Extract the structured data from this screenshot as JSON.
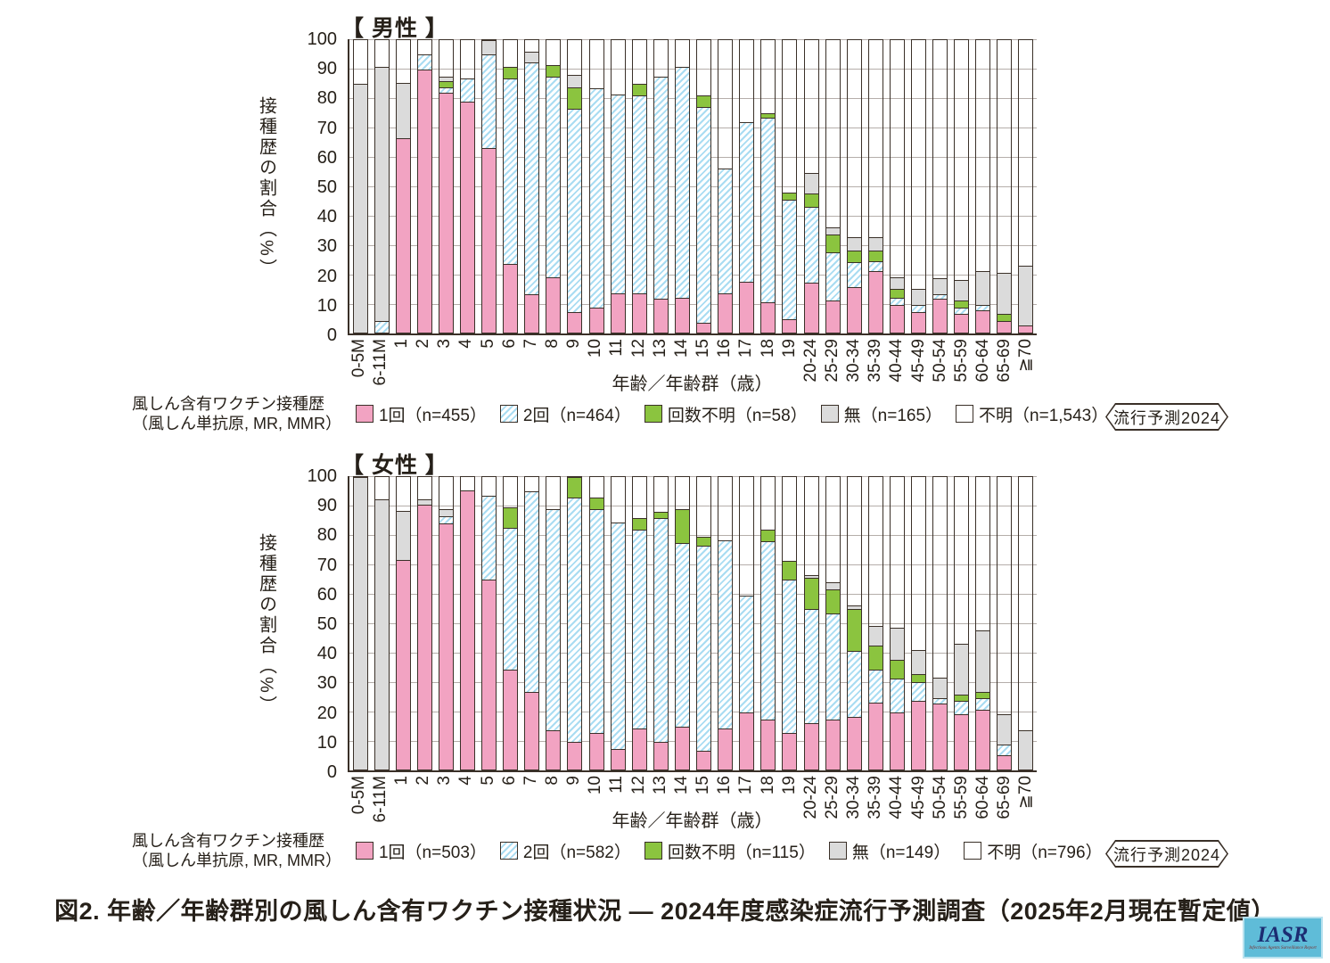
{
  "caption": "図2. 年齢／年齢群別の風しん含有ワクチン接種状況 ― 2024年度感染症流行予測調査（2025年2月現在暫定値）",
  "badge_label": "流行予測2024",
  "logo": {
    "title": "IASR",
    "subtitle": "Infectious Agents Surveillance Report"
  },
  "colors": {
    "dose1_pink": "#f2a3c2",
    "dose2_stripe_blue": "#a9dcf2",
    "unknown_doses_green": "#8bc43f",
    "none_gray": "#dbdbdb",
    "outline": "#3a3028",
    "grid": "#b5aeaa"
  },
  "chart_data": [
    {
      "type": "bar",
      "stacked": true,
      "panel_title": "【 男性 】",
      "ylabel": "接種歴の割合（%）",
      "xlabel": "年齢／年齢群（歳）",
      "ylim": [
        0,
        100
      ],
      "yticks": [
        0,
        10,
        20,
        30,
        40,
        50,
        60,
        70,
        80,
        90,
        100
      ],
      "grid": true,
      "legend_note1": "風しん含有ワクチン接種歴",
      "legend_note2": "（風しん単抗原, MR, MMR）",
      "categories": [
        "0-5M",
        "6-11M",
        "1",
        "2",
        "3",
        "4",
        "5",
        "6",
        "7",
        "8",
        "9",
        "10",
        "11",
        "12",
        "13",
        "14",
        "15",
        "16",
        "17",
        "18",
        "19",
        "20-24",
        "25-29",
        "30-34",
        "35-39",
        "40-44",
        "45-49",
        "50-54",
        "55-59",
        "60-64",
        "65-69",
        "≧70"
      ],
      "series": [
        {
          "key": "dose1",
          "name": "1回（n=455）",
          "values": [
            0,
            0,
            66.5,
            90,
            82,
            79,
            63,
            23.5,
            13,
            19,
            7,
            8.5,
            13.5,
            13.5,
            11.5,
            12,
            3.5,
            13.5,
            17.5,
            10.5,
            4.5,
            17,
            11,
            15.5,
            21,
            9.5,
            7,
            11.5,
            6.5,
            7.5,
            4,
            2.5
          ]
        },
        {
          "key": "dose2",
          "name": "2回（n=464）",
          "values": [
            0,
            4,
            0,
            5,
            2,
            8,
            32,
            63.5,
            79.5,
            68.5,
            69.5,
            75,
            68,
            67.5,
            76,
            79,
            73.5,
            42.5,
            54.5,
            63,
            41,
            26,
            16.5,
            8.5,
            3.5,
            2.5,
            2.5,
            1.5,
            2,
            2,
            0,
            0
          ]
        },
        {
          "key": "unknown",
          "name": "回数不明（n=58）",
          "values": [
            0,
            0,
            0,
            0,
            2,
            0,
            0,
            4,
            0,
            4,
            7.5,
            0,
            0,
            4,
            0,
            0,
            4,
            0,
            0,
            1.5,
            2.5,
            4.5,
            6,
            4,
            3.5,
            3,
            0,
            0,
            2.5,
            0,
            2.5,
            0
          ]
        },
        {
          "key": "none",
          "name": "無（n=165）",
          "values": [
            85,
            87,
            19,
            0,
            1.5,
            0,
            5,
            0,
            3.5,
            0,
            4,
            0,
            0,
            0,
            0,
            0,
            0,
            0,
            0,
            0,
            0,
            7,
            2.5,
            4.5,
            4.5,
            4,
            5.5,
            5.5,
            7,
            11.5,
            14,
            20.5
          ]
        },
        {
          "key": "fumei",
          "name": "不明（n=1,543）",
          "values": [
            15,
            9,
            14.5,
            5,
            12.5,
            13,
            0,
            9,
            4,
            8.5,
            12,
            16.5,
            18.5,
            15,
            12.5,
            9,
            19,
            44,
            28,
            25,
            52,
            45.5,
            64,
            67.5,
            67.5,
            81,
            85,
            81.5,
            82,
            79,
            79.5,
            77
          ]
        }
      ]
    },
    {
      "type": "bar",
      "stacked": true,
      "panel_title": "【 女性 】",
      "ylabel": "接種歴の割合（%）",
      "xlabel": "年齢／年齢群（歳）",
      "ylim": [
        0,
        100
      ],
      "yticks": [
        0,
        10,
        20,
        30,
        40,
        50,
        60,
        70,
        80,
        90,
        100
      ],
      "grid": true,
      "legend_note1": "風しん含有ワクチン接種歴",
      "legend_note2": "（風しん単抗原, MR, MMR）",
      "categories": [
        "0-5M",
        "6-11M",
        "1",
        "2",
        "3",
        "4",
        "5",
        "6",
        "7",
        "8",
        "9",
        "10",
        "11",
        "12",
        "13",
        "14",
        "15",
        "16",
        "17",
        "18",
        "19",
        "20-24",
        "25-29",
        "30-34",
        "35-39",
        "40-44",
        "45-49",
        "50-54",
        "55-59",
        "60-64",
        "65-69",
        "≧70"
      ],
      "series": [
        {
          "key": "dose1",
          "name": "1回（n=503）",
          "values": [
            0,
            0,
            71.5,
            90.5,
            84,
            95.5,
            65,
            34,
            26.5,
            13.5,
            9.5,
            12.5,
            7,
            14,
            9.5,
            14.5,
            6.5,
            14,
            19.5,
            17,
            12.5,
            16,
            17,
            18,
            23,
            19.5,
            23.5,
            22.5,
            19,
            20.5,
            5,
            0
          ]
        },
        {
          "key": "dose2",
          "name": "2回（n=582）",
          "values": [
            0,
            0,
            0,
            0,
            2.5,
            0,
            28.5,
            48.5,
            68.5,
            75.5,
            83.5,
            76.5,
            77.5,
            68,
            76.5,
            63,
            70,
            64.5,
            40,
            61,
            52.5,
            39,
            36.5,
            22.5,
            11,
            11.5,
            6.5,
            2,
            4.5,
            4,
            3.5,
            0
          ]
        },
        {
          "key": "unknown",
          "name": "回数不明（n=115）",
          "values": [
            0,
            0,
            0,
            0,
            0,
            0,
            0,
            7,
            0,
            0,
            7,
            4,
            0,
            4,
            2,
            11.5,
            3,
            0,
            0,
            4,
            6.5,
            10.5,
            8,
            14.5,
            8.5,
            6.5,
            2.5,
            0,
            2,
            2,
            0,
            0
          ]
        },
        {
          "key": "none",
          "name": "無（n=149）",
          "values": [
            100,
            92.5,
            17,
            2,
            2.5,
            0,
            0,
            0,
            0,
            0,
            0,
            0,
            0,
            0,
            0,
            0,
            0,
            0,
            0,
            0,
            0,
            1,
            2.5,
            1,
            6.5,
            11,
            8.5,
            7,
            17.5,
            21,
            10.5,
            13.5
          ]
        },
        {
          "key": "fumei",
          "name": "不明（n=796）",
          "values": [
            0,
            7.5,
            11.5,
            7.5,
            11,
            4.5,
            6.5,
            10.5,
            5,
            11,
            0,
            7,
            15.5,
            14,
            12,
            11,
            20.5,
            21.5,
            40.5,
            18,
            28.5,
            33.5,
            36,
            44,
            51,
            51.5,
            59,
            68.5,
            57,
            52.5,
            81,
            86.5
          ]
        }
      ]
    }
  ]
}
